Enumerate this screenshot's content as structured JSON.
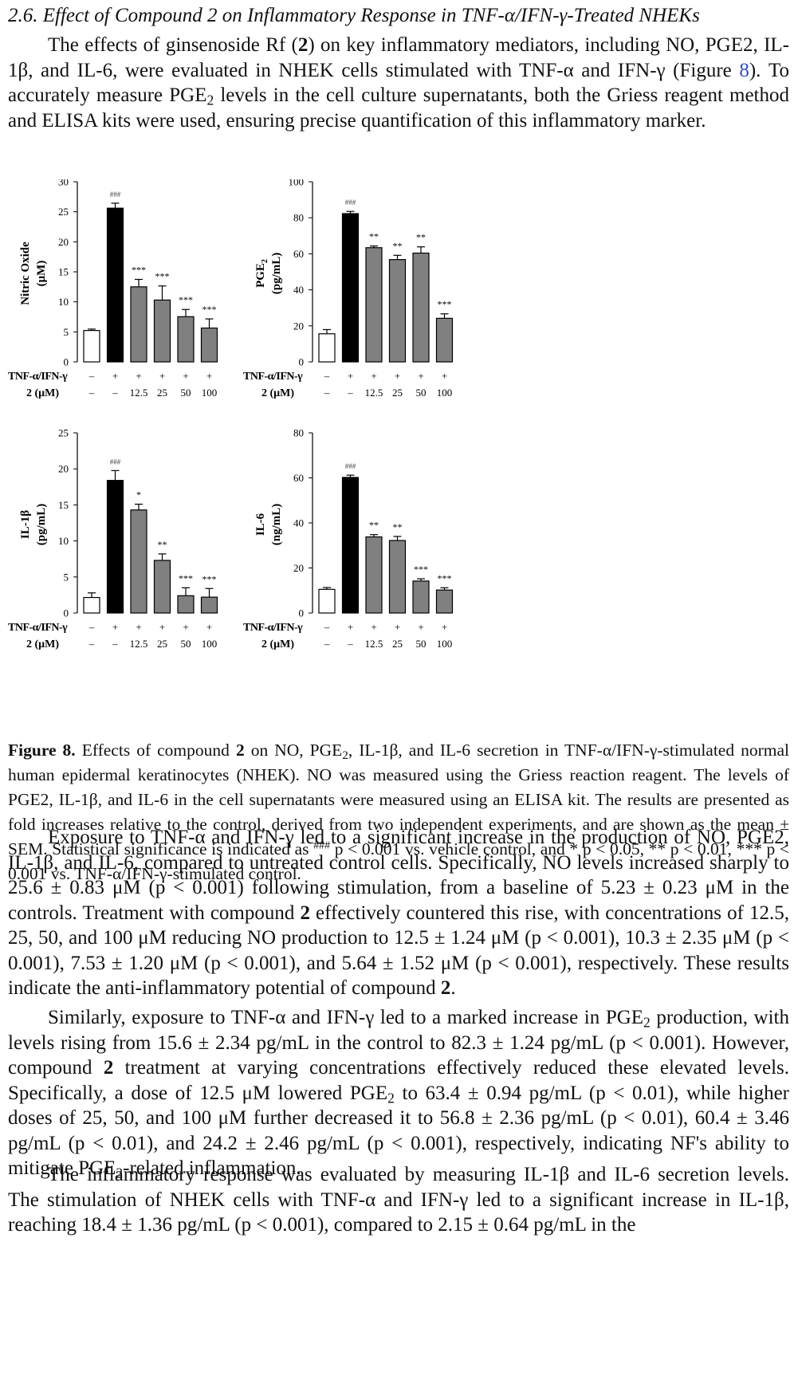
{
  "section": {
    "heading": "2.6. Effect of Compound 2 on Inflammatory Response in TNF-α/IFN-γ-Treated NHEKs"
  },
  "intro_paragraph": {
    "part1": "The effects of ginsenoside Rf (",
    "bold_compound": "2",
    "part2": ") on key inflammatory mediators, including NO, PGE2, IL-1β, and IL-6, were evaluated in NHEK cells stimulated with TNF-α and IFN-γ (Figure ",
    "figure_ref": "8",
    "part3": "). To accurately measure PGE",
    "sub2": "2",
    "part4": " levels in the cell culture supernatants, both the Griess reagent method and ELISA kits were used, ensuring precise quantification of this inflammatory marker."
  },
  "caption": {
    "label": "Figure 8.",
    "t1": " Effects of compound ",
    "bold2": "2",
    "t2": " on NO, PGE",
    "sub2": "2",
    "t3": ", IL-1β, and IL-6 secretion in TNF-α/IFN-γ-stimulated normal human epidermal keratinocytes (NHEK). NO was measured using the Griess reaction reagent. The levels of PGE2, IL-1β, and IL-6 in the cell supernatants were measured using an ELISA kit. The results are presented as fold increases relative to the control, derived from two independent experiments, and are shown as the mean ± SEM. Statistical significance is indicated as ",
    "sup_hash": "###",
    "t4": " p < 0.001 vs. vehicle control, and * p < 0.05, ** p < 0.01, *** p < 0.001 vs. TNF-α/IFN-γ-stimulated control."
  },
  "body_paragraphs": {
    "p1_a": "Exposure to TNF-α and IFN-γ led to a significant increase in the production of NO, PGE2, IL-1β, and IL-6, compared to untreated control cells. Specifically, NO levels increased sharply to 25.6 ± 0.83 μM (p < 0.001) following stimulation, from a baseline of 5.23 ± 0.23 μM in the controls. Treatment with compound ",
    "p1_bold": "2",
    "p1_b": " effectively countered this rise, with concentrations of 12.5, 25, 50, and 100 μM reducing NO production to 12.5 ± 1.24 μM (p < 0.001), 10.3 ± 2.35 μM (p < 0.001), 7.53 ± 1.20 μM (p < 0.001), and 5.64 ± 1.52 μM (p < 0.001), respectively. These results indicate the anti-inflammatory potential of compound ",
    "p1_bold2": "2",
    "p1_c": ".",
    "p2_a": "Similarly, exposure to TNF-α and IFN-γ led to a marked increase in PGE",
    "p2_sub": "2",
    "p2_b": " production, with levels rising from 15.6 ± 2.34 pg/mL in the control to 82.3 ± 1.24 pg/mL (p < 0.001). However, compound ",
    "p2_bold": "2",
    "p2_c": " treatment at varying concentrations effectively reduced these elevated levels. Specifically, a dose of 12.5 μM lowered PGE",
    "p2_sub2": "2",
    "p2_d": " to 63.4 ± 0.94 pg/mL (p < 0.01), while higher doses of 25, 50, and 100 μM further decreased it to 56.8 ± 2.36 pg/mL (p < 0.01), 60.4 ± 3.46 pg/mL (p < 0.01), and 24.2 ± 2.46 pg/mL (p < 0.001), respectively, indicating NF's ability to mitigate PGE",
    "p2_sub3": "2",
    "p2_e": "-related inflammation.",
    "p3": "The inflammatory response was evaluated by measuring IL-1β and IL-6 secretion levels. The stimulation of NHEK cells with TNF-α and IFN-γ led to a significant increase in IL-1β, reaching 18.4 ± 1.36 pg/mL (p < 0.001), compared to 2.15 ± 0.64 pg/mL in the"
  },
  "chart_data": [
    {
      "type": "bar",
      "ylabel_lines": [
        "Nitric Oxide",
        "(μM)"
      ],
      "ylim": [
        0,
        30
      ],
      "yticks": [
        0,
        5,
        10,
        15,
        20,
        25,
        30
      ],
      "values": [
        5.23,
        25.6,
        12.5,
        10.3,
        7.53,
        5.64
      ],
      "errors": [
        0.23,
        0.83,
        1.24,
        2.35,
        1.2,
        1.52
      ],
      "annotations": [
        "",
        "###",
        "***",
        "***",
        "***",
        "***"
      ],
      "row_labels": [
        "TNF-α/IFN-γ",
        "2 (μM)"
      ],
      "treatment_row": [
        "–",
        "+",
        "+",
        "+",
        "+",
        "+"
      ],
      "dose_row": [
        "–",
        "–",
        "12.5",
        "25",
        "50",
        "100"
      ],
      "fills": [
        "#ffffff",
        "#000000",
        "#808080",
        "#808080",
        "#808080",
        "#808080"
      ]
    },
    {
      "type": "bar",
      "ylabel_main": "PGE",
      "ylabel_sub": "2",
      "ylabel_unit": "(pg/mL)",
      "ylim": [
        0,
        100
      ],
      "yticks": [
        0,
        20,
        40,
        60,
        80,
        100
      ],
      "values": [
        15.6,
        82.3,
        63.4,
        56.8,
        60.4,
        24.2
      ],
      "errors": [
        2.34,
        1.24,
        0.94,
        2.36,
        3.46,
        2.46
      ],
      "annotations": [
        "",
        "###",
        "**",
        "**",
        "**",
        "***"
      ],
      "row_labels": [
        "TNF-α/IFN-γ",
        "2 (μM)"
      ],
      "treatment_row": [
        "–",
        "+",
        "+",
        "+",
        "+",
        "+"
      ],
      "dose_row": [
        "–",
        "–",
        "12.5",
        "25",
        "50",
        "100"
      ],
      "fills": [
        "#ffffff",
        "#000000",
        "#808080",
        "#808080",
        "#808080",
        "#808080"
      ]
    },
    {
      "type": "bar",
      "ylabel_lines": [
        "IL-1β",
        "(pg/mL)"
      ],
      "ylim": [
        0,
        25
      ],
      "yticks": [
        0,
        5,
        10,
        15,
        20,
        25
      ],
      "values": [
        2.15,
        18.4,
        14.3,
        7.3,
        2.4,
        2.2
      ],
      "errors": [
        0.64,
        1.36,
        0.8,
        0.9,
        1.1,
        1.2
      ],
      "annotations": [
        "",
        "###",
        "*",
        "**",
        "***",
        "***"
      ],
      "row_labels": [
        "TNF-α/IFN-γ",
        "2 (μM)"
      ],
      "treatment_row": [
        "–",
        "+",
        "+",
        "+",
        "+",
        "+"
      ],
      "dose_row": [
        "–",
        "–",
        "12.5",
        "25",
        "50",
        "100"
      ],
      "fills": [
        "#ffffff",
        "#000000",
        "#808080",
        "#808080",
        "#808080",
        "#808080"
      ]
    },
    {
      "type": "bar",
      "ylabel_lines": [
        "IL-6",
        "(ng/mL)"
      ],
      "ylim": [
        0,
        80
      ],
      "yticks": [
        0,
        20,
        40,
        60,
        80
      ],
      "values": [
        10.5,
        60.2,
        33.8,
        32.2,
        14.2,
        10.2
      ],
      "errors": [
        0.8,
        1.0,
        1.0,
        1.8,
        1.0,
        1.0
      ],
      "annotations": [
        "",
        "###",
        "**",
        "**",
        "***",
        "***"
      ],
      "row_labels": [
        "TNF-α/IFN-γ",
        "2 (μM)"
      ],
      "treatment_row": [
        "–",
        "+",
        "+",
        "+",
        "+",
        "+"
      ],
      "dose_row": [
        "–",
        "–",
        "12.5",
        "25",
        "50",
        "100"
      ],
      "fills": [
        "#ffffff",
        "#000000",
        "#808080",
        "#808080",
        "#808080",
        "#808080"
      ]
    }
  ]
}
